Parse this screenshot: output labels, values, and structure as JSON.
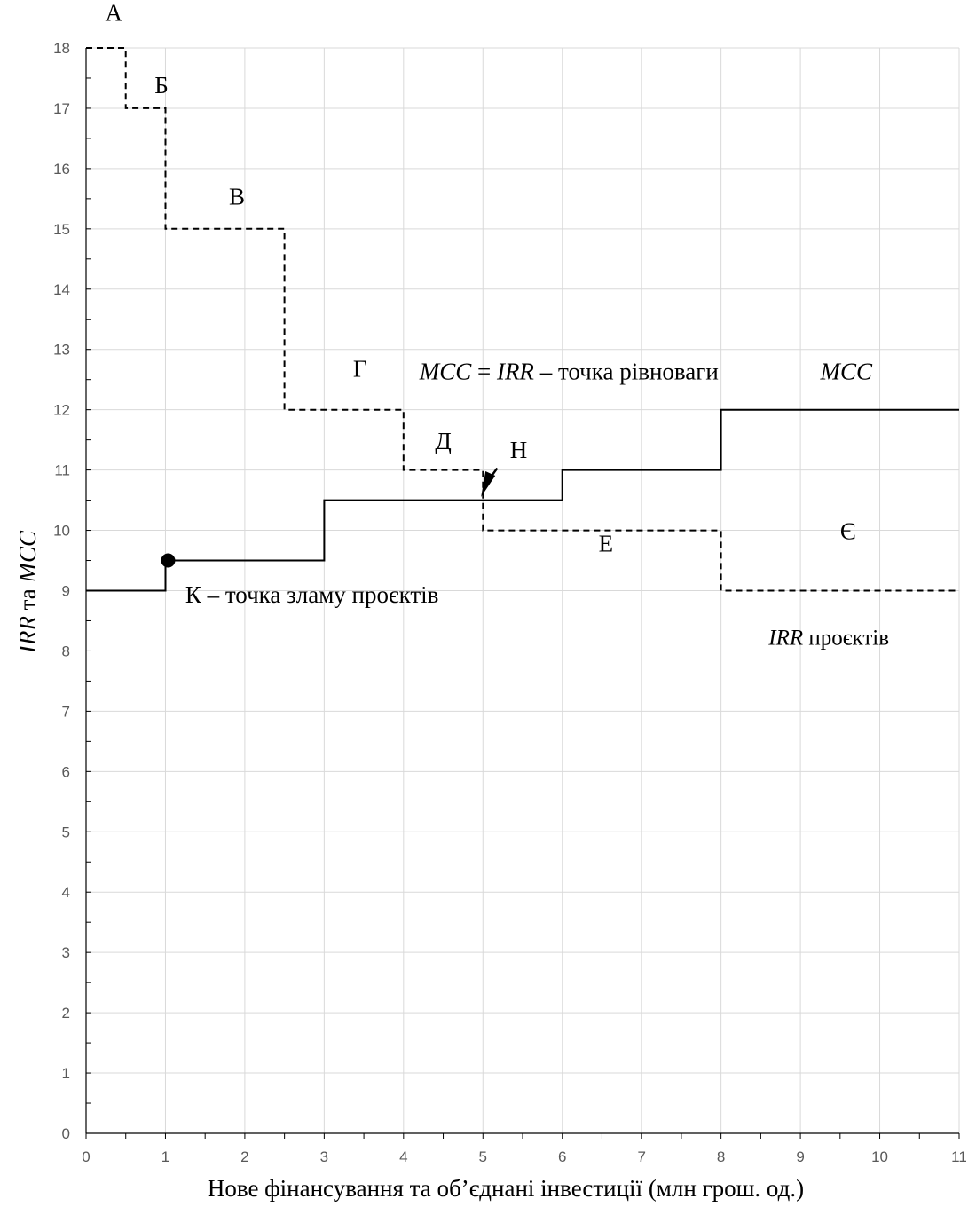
{
  "chart_data": {
    "type": "line",
    "xlabel": "Нове фінансування та об’єднані інвестиції (млн грош. од.)",
    "ylabel_italic": "IRR",
    "ylabel_mid": " та ",
    "ylabel_italic2": "MCC",
    "xlim": [
      0,
      11
    ],
    "ylim": [
      0,
      18
    ],
    "x_ticks": [
      "0",
      "1",
      "2",
      "3",
      "4",
      "5",
      "6",
      "7",
      "8",
      "9",
      "10",
      "11"
    ],
    "y_ticks": [
      "0",
      "1",
      "2",
      "3",
      "4",
      "5",
      "6",
      "7",
      "8",
      "9",
      "10",
      "11",
      "12",
      "13",
      "14",
      "15",
      "16",
      "17",
      "18"
    ],
    "grid": true,
    "series": [
      {
        "name": "MCC",
        "style": "solid",
        "points": [
          [
            0,
            9
          ],
          [
            1,
            9
          ],
          [
            1,
            9.5
          ],
          [
            3,
            9.5
          ],
          [
            3,
            10.5
          ],
          [
            6,
            10.5
          ],
          [
            6,
            11
          ],
          [
            8,
            11
          ],
          [
            8,
            12
          ],
          [
            11,
            12
          ]
        ]
      },
      {
        "name": "IRR проєктів",
        "style": "dashed",
        "points": [
          [
            0,
            18
          ],
          [
            0.5,
            18
          ],
          [
            0.5,
            17
          ],
          [
            1,
            17
          ],
          [
            1,
            15
          ],
          [
            2.5,
            15
          ],
          [
            2.5,
            12
          ],
          [
            4,
            12
          ],
          [
            4,
            11
          ],
          [
            5,
            11
          ],
          [
            5,
            10
          ],
          [
            8,
            10
          ],
          [
            8,
            9
          ],
          [
            11,
            9
          ]
        ]
      }
    ],
    "break_point": [
      1,
      9.5
    ],
    "annotations": [
      {
        "text": "А",
        "x": 0.35,
        "y": 18.45
      },
      {
        "text": "Б",
        "x": 0.95,
        "y": 17.25
      },
      {
        "text": "В",
        "x": 1.9,
        "y": 15.4
      },
      {
        "text": "Г",
        "x": 3.45,
        "y": 12.55
      },
      {
        "text": "Д",
        "x": 4.5,
        "y": 11.35
      },
      {
        "text": "Н",
        "x": 5.45,
        "y": 11.2
      },
      {
        "text": "Е",
        "x": 6.55,
        "y": 9.65
      },
      {
        "text": "Є",
        "x": 9.6,
        "y": 9.85
      }
    ],
    "equilibrium_label": {
      "lhs": "MCC",
      "eq": " = ",
      "rhs": "IRR",
      "rest": " – точка рівноваги",
      "x": 4.2,
      "y": 12.5
    },
    "mcc_label": {
      "text": "MCC",
      "x": 9.25,
      "y": 12.5
    },
    "break_label": {
      "text": "К – точка зламу проєктів",
      "x": 1.25,
      "y": 8.8
    },
    "irr_label": {
      "italic": "IRR",
      "rest": " проєктів",
      "x": 8.6,
      "y": 8.1
    }
  }
}
